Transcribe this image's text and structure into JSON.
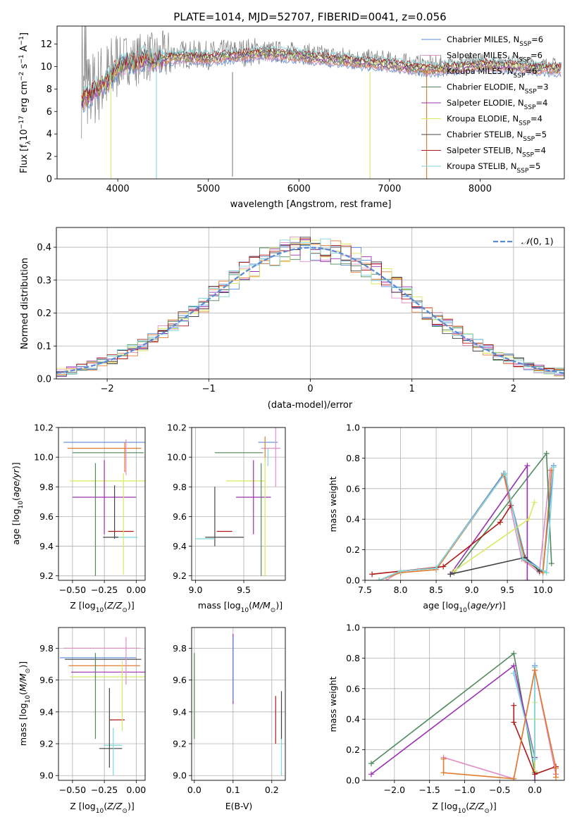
{
  "figure": {
    "title": "PLATE=1014, MJD=52707, FIBERID=0041, z=0.056",
    "colors": {
      "Chabrier MILES": "#5b8bd8",
      "Salpeter MILES": "#e08fc4",
      "Kroupa MILES": "#e07a2e",
      "Chabrier ELODIE": "#4f8a5b",
      "Salpeter ELODIE": "#9b30b0",
      "Kroupa ELODIE": "#d8e860",
      "Chabrier STELIB": "#444444",
      "Salpeter STELIB": "#b01818",
      "Kroupa STELIB": "#7fd6d8",
      "data": "#808080"
    }
  },
  "chart_data": [
    {
      "id": "spectrum",
      "type": "line",
      "xlabel": "wavelength [Angstrom, rest frame]",
      "ylabel": "Flux [f",
      "xlim": [
        3330,
        8930
      ],
      "ylim": [
        0,
        13.6
      ],
      "xticks": [
        4000,
        5000,
        6000,
        7000,
        8000
      ],
      "yticks": [
        0,
        2,
        4,
        6,
        8,
        10,
        12
      ],
      "grid": false,
      "legend_position": "top-right",
      "legend": [
        {
          "name": "Chabrier MILES",
          "label": "Chabrier MILES, N",
          "n": "=6"
        },
        {
          "name": "Salpeter MILES",
          "label": "Salpeter MILES, N",
          "n": "=6"
        },
        {
          "name": "Kroupa MILES",
          "label": "Kroupa MILES, N",
          "n": "=6"
        },
        {
          "name": "Chabrier ELODIE",
          "label": "Chabrier ELODIE, N",
          "n": "=3"
        },
        {
          "name": "Salpeter ELODIE",
          "label": "Salpeter ELODIE, N",
          "n": "=4"
        },
        {
          "name": "Kroupa ELODIE",
          "label": "Kroupa ELODIE, N",
          "n": "=4"
        },
        {
          "name": "Chabrier STELIB",
          "label": "Chabrier STELIB, N",
          "n": "=5"
        },
        {
          "name": "Salpeter STELIB",
          "label": "Salpeter STELIB, N",
          "n": "=4"
        },
        {
          "name": "Kroupa STELIB",
          "label": "Kroupa STELIB, N",
          "n": "=5"
        }
      ],
      "data_envelope": {
        "x": [
          3600,
          3700,
          3800,
          3900,
          4000,
          4100,
          4200,
          4300,
          4400,
          4500,
          4700,
          5000,
          5300,
          5600,
          6000,
          6300,
          6500,
          6700,
          6900,
          7100,
          7300,
          7500,
          7800,
          8000,
          8300,
          8600,
          8900
        ],
        "y": [
          7.2,
          7.8,
          8.5,
          9.0,
          10.2,
          10.7,
          10.5,
          11.0,
          10.7,
          10.9,
          11.1,
          11.0,
          11.2,
          11.4,
          11.2,
          10.9,
          10.8,
          10.6,
          10.5,
          10.3,
          10.1,
          10.0,
          10.2,
          10.4,
          10.3,
          10.1,
          10.0
        ]
      },
      "dips": [
        {
          "x": 3925,
          "y": 0
        },
        {
          "x": 4427,
          "y": 0
        },
        {
          "x": 5267,
          "y": 0.2
        },
        {
          "x": 6785,
          "y": 0
        },
        {
          "x": 7410,
          "y": 0
        }
      ]
    },
    {
      "id": "residuals",
      "type": "line",
      "xlabel": "(data-model)/error",
      "ylabel": "Normed distribution",
      "xlim": [
        -2.5,
        2.5
      ],
      "ylim": [
        0,
        0.46
      ],
      "xticks": [
        -2,
        -1,
        0,
        1,
        2
      ],
      "yticks": [
        0.0,
        0.1,
        0.2,
        0.3,
        0.4
      ],
      "grid": true,
      "legend_position": "top-right",
      "legend_label": "N(0,1)",
      "bins": 50
    },
    {
      "id": "age-vs-Z",
      "type": "scatter",
      "xlabel": "Z [log",
      "ylabel": "age  [log",
      "xlim": [
        -0.61,
        0.07
      ],
      "ylim": [
        9.17,
        10.2
      ],
      "xticks": [
        -0.5,
        -0.25,
        0.0
      ],
      "xticklabels": [
        "−0.50",
        "−0.25",
        "0.00"
      ],
      "yticks": [
        9.2,
        9.4,
        9.6,
        9.8,
        10.0,
        10.2
      ],
      "grid": true,
      "points": [
        {
          "series": "Chabrier MILES",
          "x": -0.25,
          "y": 10.1,
          "xerr": 0.32,
          "yerr": 0.0
        },
        {
          "series": "Kroupa MILES",
          "x": -0.25,
          "y": 10.06,
          "xerr": 0.29,
          "yerr": 0.0
        },
        {
          "series": "Chabrier ELODIE",
          "x": -0.22,
          "y": 10.03,
          "xerr": 0.28,
          "yerr": 0.0
        },
        {
          "series": "Salpeter MILES",
          "x": -0.08,
          "y": 10.0,
          "xerr": 0.0,
          "yerr": 0.12
        },
        {
          "series": "Kroupa ELODIE",
          "x": -0.22,
          "y": 9.84,
          "xerr": 0.3,
          "yerr": 0.0
        },
        {
          "series": "Salpeter ELODIE",
          "x": -0.25,
          "y": 9.73,
          "xerr": 0.25,
          "yerr": 0.25
        },
        {
          "series": "Chabrier STELIB",
          "x": -0.17,
          "y": 9.63,
          "xerr": 0.0,
          "yerr": 0.18
        },
        {
          "series": "Salpeter STELIB",
          "x": -0.12,
          "y": 9.5,
          "xerr": 0.1,
          "yerr": 0.0
        },
        {
          "series": "Kroupa STELIB",
          "x": -0.1,
          "y": 9.46,
          "xerr": 0.11,
          "yerr": 0.0
        },
        {
          "series": "Chabrier ELODIE",
          "x": -0.32,
          "y": 9.58,
          "xerr": 0.0,
          "yerr": 0.38
        },
        {
          "series": "Kroupa ELODIE",
          "x": -0.1,
          "y": 9.55,
          "xerr": 0.0,
          "yerr": 0.34
        },
        {
          "series": "Kroupa MILES",
          "x": -0.09,
          "y": 10.0,
          "xerr": 0.0,
          "yerr": 0.1
        },
        {
          "series": "Chabrier STELIB",
          "x": -0.2,
          "y": 9.46,
          "xerr": 0.06,
          "yerr": 0.0
        }
      ]
    },
    {
      "id": "age-vs-mass",
      "type": "scatter",
      "xlabel": "mass [log",
      "ylabel": "",
      "xlim": [
        8.96,
        9.93
      ],
      "ylim": [
        9.17,
        10.2
      ],
      "xticks": [
        9.0,
        9.5
      ],
      "yticks": [
        9.2,
        9.4,
        9.6,
        9.8,
        10.0,
        10.2
      ],
      "grid": true,
      "points": [
        {
          "series": "Chabrier MILES",
          "x": 9.75,
          "y": 10.1,
          "xerr": 0.1,
          "yerr": 0.0
        },
        {
          "series": "Salpeter MILES",
          "x": 9.78,
          "y": 10.06,
          "xerr": 0.1,
          "yerr": 0.0
        },
        {
          "series": "Salpeter MILES",
          "x": 9.83,
          "y": 10.0,
          "xerr": 0.0,
          "yerr": 0.2
        },
        {
          "series": "Kroupa MILES",
          "x": 9.72,
          "y": 10.06,
          "xerr": 0.0,
          "yerr": 0.08
        },
        {
          "series": "Chabrier ELODIE",
          "x": 9.45,
          "y": 10.03,
          "xerr": 0.25,
          "yerr": 0.0
        },
        {
          "series": "Kroupa ELODIE",
          "x": 9.52,
          "y": 9.84,
          "xerr": 0.2,
          "yerr": 0.0
        },
        {
          "series": "Salpeter ELODIE",
          "x": 9.6,
          "y": 9.73,
          "xerr": 0.18,
          "yerr": 0.25
        },
        {
          "series": "Chabrier STELIB",
          "x": 9.2,
          "y": 9.6,
          "xerr": 0.0,
          "yerr": 0.2
        },
        {
          "series": "Salpeter STELIB",
          "x": 9.3,
          "y": 9.5,
          "xerr": 0.08,
          "yerr": 0.0
        },
        {
          "series": "Kroupa STELIB",
          "x": 9.1,
          "y": 9.45,
          "xerr": 0.1,
          "yerr": 0.0
        },
        {
          "series": "Chabrier STELIB",
          "x": 9.3,
          "y": 9.46,
          "xerr": 0.2,
          "yerr": 0.0
        },
        {
          "series": "Chabrier ELODIE",
          "x": 9.68,
          "y": 9.58,
          "xerr": 0.0,
          "yerr": 0.38
        },
        {
          "series": "Kroupa ELODIE",
          "x": 9.72,
          "y": 9.6,
          "xerr": 0.0,
          "yerr": 0.4
        },
        {
          "series": "Kroupa STELIB",
          "x": 9.75,
          "y": 10.0,
          "xerr": 0.0,
          "yerr": 0.06
        }
      ]
    },
    {
      "id": "weight-vs-age",
      "type": "line",
      "xlabel": "age  [log",
      "ylabel": "mass weight",
      "xlim": [
        7.5,
        10.3
      ],
      "ylim": [
        0,
        1.0
      ],
      "xticks": [
        7.5,
        8.0,
        8.5,
        9.0,
        9.5,
        10.0
      ],
      "yticks": [
        0.0,
        0.2,
        0.4,
        0.6,
        0.8,
        1.0
      ],
      "grid": true,
      "series": [
        {
          "name": "Chabrier MILES",
          "x": [
            7.7,
            8.0,
            8.5,
            9.45,
            9.75,
            10.0,
            10.15
          ],
          "y": [
            0.0,
            0.06,
            0.08,
            0.7,
            0.15,
            0.06,
            0.75
          ]
        },
        {
          "name": "Salpeter MILES",
          "x": [
            7.8,
            8.0,
            8.5,
            9.45,
            9.7,
            9.95,
            10.1
          ],
          "y": [
            0.0,
            0.06,
            0.08,
            0.69,
            0.14,
            0.05,
            0.72
          ]
        },
        {
          "name": "Kroupa MILES",
          "x": [
            7.7,
            8.0,
            8.5,
            9.45,
            9.75,
            10.0,
            10.12
          ],
          "y": [
            0.0,
            0.05,
            0.07,
            0.69,
            0.13,
            0.05,
            0.72
          ]
        },
        {
          "name": "Chabrier ELODIE",
          "x": [
            8.75,
            10.05,
            10.12
          ],
          "y": [
            0.05,
            0.83,
            0.11
          ]
        },
        {
          "name": "Salpeter ELODIE",
          "x": [
            8.7,
            9.78,
            9.78
          ],
          "y": [
            0.04,
            0.75,
            0.0
          ]
        },
        {
          "name": "Kroupa ELODIE",
          "x": [
            8.75,
            9.8,
            9.88
          ],
          "y": [
            0.06,
            0.4,
            0.51
          ]
        },
        {
          "name": "Chabrier STELIB",
          "x": [
            8.7,
            9.75,
            9.95
          ],
          "y": [
            0.04,
            0.15,
            0.06
          ]
        },
        {
          "name": "Salpeter STELIB",
          "x": [
            7.6,
            8.6,
            9.4,
            9.55
          ],
          "y": [
            0.04,
            0.09,
            0.38,
            0.49
          ]
        },
        {
          "name": "Kroupa STELIB",
          "x": [
            7.7,
            8.0,
            8.5,
            9.47,
            9.72,
            10.05,
            10.15
          ],
          "y": [
            0.0,
            0.06,
            0.08,
            0.7,
            0.14,
            0.05,
            0.74
          ]
        }
      ]
    },
    {
      "id": "mass-vs-Z",
      "type": "scatter",
      "xlabel": "Z [log",
      "ylabel": "mass [log",
      "xlim": [
        -0.61,
        0.07
      ],
      "ylim": [
        8.97,
        9.93
      ],
      "xticks": [
        -0.5,
        -0.25,
        0.0
      ],
      "xticklabels": [
        "−0.50",
        "−0.25",
        "0.00"
      ],
      "yticks": [
        9.0,
        9.2,
        9.4,
        9.6,
        9.8
      ],
      "grid": true,
      "points": [
        {
          "series": "Salpeter MILES",
          "x": -0.27,
          "y": 9.8,
          "xerr": 0.3,
          "yerr": 0.0
        },
        {
          "series": "Chabrier MILES",
          "x": -0.3,
          "y": 9.74,
          "xerr": 0.3,
          "yerr": 0.0
        },
        {
          "series": "Chabrier STELIB",
          "x": -0.26,
          "y": 9.73,
          "xerr": 0.3,
          "yerr": 0.0
        },
        {
          "series": "Kroupa MILES",
          "x": -0.25,
          "y": 9.69,
          "xerr": 0.28,
          "yerr": 0.0
        },
        {
          "series": "Salpeter ELODIE",
          "x": -0.22,
          "y": 9.65,
          "xerr": 0.29,
          "yerr": 0.0
        },
        {
          "series": "Kroupa ELODIE",
          "x": -0.22,
          "y": 9.62,
          "xerr": 0.3,
          "yerr": 0.0
        },
        {
          "series": "Chabrier ELODIE",
          "x": -0.32,
          "y": 9.5,
          "xerr": 0.0,
          "yerr": 0.27
        },
        {
          "series": "Salpeter STELIB",
          "x": -0.15,
          "y": 9.35,
          "xerr": 0.06,
          "yerr": 0.0
        },
        {
          "series": "Chabrier STELIB",
          "x": -0.2,
          "y": 9.17,
          "xerr": 0.09,
          "yerr": 0.0
        },
        {
          "series": "Kroupa STELIB",
          "x": -0.18,
          "y": 9.19,
          "xerr": 0.07,
          "yerr": 0.0
        },
        {
          "series": "Kroupa STELIB",
          "x": -0.18,
          "y": 9.15,
          "xerr": 0.0,
          "yerr": 0.15
        },
        {
          "series": "Kroupa ELODIE",
          "x": -0.11,
          "y": 9.5,
          "xerr": 0.0,
          "yerr": 0.22
        },
        {
          "series": "Salpeter MILES",
          "x": -0.08,
          "y": 9.72,
          "xerr": 0.0,
          "yerr": 0.15
        },
        {
          "series": "Chabrier STELIB",
          "x": -0.21,
          "y": 9.3,
          "xerr": 0.0,
          "yerr": 0.25
        }
      ]
    },
    {
      "id": "mass-vs-ebv",
      "type": "scatter",
      "xlabel": "E(B-V)",
      "ylabel": "",
      "xlim": [
        -0.007,
        0.235
      ],
      "ylim": [
        8.97,
        9.93
      ],
      "xticks": [
        0.0,
        0.1,
        0.2
      ],
      "yticks": [
        9.0,
        9.2,
        9.4,
        9.6,
        9.8
      ],
      "grid": true,
      "points": [
        {
          "series": "Kroupa ELODIE",
          "x": 0.0,
          "y": 9.5,
          "xerr": 0.0,
          "yerr": 0.25
        },
        {
          "series": "Chabrier ELODIE",
          "x": 0.0,
          "y": 9.5,
          "xerr": 0.0,
          "yerr": 0.27
        },
        {
          "series": "Salpeter ELODIE",
          "x": 0.1,
          "y": 9.67,
          "xerr": 0.0,
          "yerr": 0.22
        },
        {
          "series": "Chabrier MILES",
          "x": 0.1,
          "y": 9.67,
          "xerr": 0.0,
          "yerr": 0.2
        },
        {
          "series": "Salpeter STELIB",
          "x": 0.21,
          "y": 9.35,
          "xerr": 0.0,
          "yerr": 0.15
        },
        {
          "series": "Kroupa STELIB",
          "x": 0.225,
          "y": 9.2,
          "xerr": 0.0,
          "yerr": 0.2
        },
        {
          "series": "Chabrier STELIB",
          "x": 0.225,
          "y": 9.38,
          "xerr": 0.0,
          "yerr": 0.15
        }
      ]
    },
    {
      "id": "weight-vs-Z",
      "type": "line",
      "xlabel": "Z [log",
      "ylabel": "mass weight",
      "xlim": [
        -2.42,
        0.42
      ],
      "ylim": [
        0,
        1.0
      ],
      "xticks": [
        -2.0,
        -1.5,
        -1.0,
        -0.5,
        0.0
      ],
      "xticklabels": [
        "−2.0",
        "−1.5",
        "−1.0",
        "−0.5",
        "0.0"
      ],
      "yticks": [
        0.0,
        0.2,
        0.4,
        0.6,
        0.8,
        1.0
      ],
      "grid": true,
      "series": [
        {
          "name": "Chabrier MILES",
          "x": [
            -0.3,
            0.0,
            0.0,
            0.0
          ],
          "y": [
            0.7,
            0.15,
            0.75,
            0.06
          ]
        },
        {
          "name": "Chabrier ELODIE",
          "x": [
            -2.33,
            -0.3,
            0.0
          ],
          "y": [
            0.11,
            0.83,
            0.05
          ]
        },
        {
          "name": "Salpeter ELODIE",
          "x": [
            -2.33,
            -0.3,
            0.0,
            0.0
          ],
          "y": [
            0.04,
            0.75,
            0.15,
            0.0
          ]
        },
        {
          "name": "Kroupa ELODIE",
          "x": [
            0.0,
            0.0,
            0.0
          ],
          "y": [
            0.06,
            0.4,
            0.51
          ]
        },
        {
          "name": "Salpeter STELIB",
          "x": [
            -0.3,
            -0.3,
            0.0,
            0.3,
            0.3
          ],
          "y": [
            0.49,
            0.38,
            0.04,
            0.09,
            0.04
          ]
        },
        {
          "name": "Kroupa STELIB",
          "x": [
            -0.3,
            0.0,
            0.0
          ],
          "y": [
            0.7,
            0.14,
            0.74
          ]
        },
        {
          "name": "Salpeter MILES",
          "x": [
            -1.3,
            -0.3,
            0.0,
            0.3
          ],
          "y": [
            0.15,
            0.01,
            0.72,
            0.04
          ]
        },
        {
          "name": "Kroupa MILES",
          "x": [
            -1.3,
            -1.3,
            -0.3,
            0.0,
            0.3,
            0.3
          ],
          "y": [
            0.14,
            0.05,
            0.01,
            0.72,
            0.08,
            0.02
          ]
        }
      ]
    }
  ]
}
